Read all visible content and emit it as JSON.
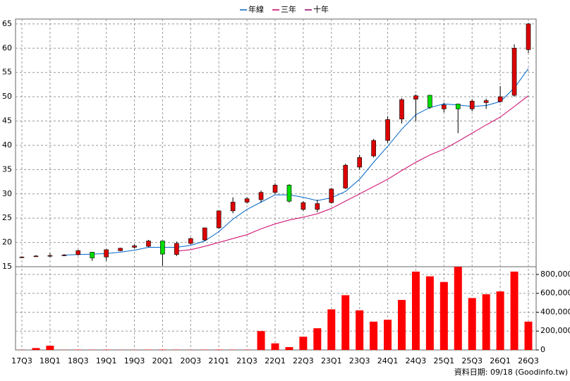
{
  "chart_data": {
    "type": "candlestick",
    "categories": [
      "17Q3",
      null,
      "18Q1",
      null,
      "18Q3",
      null,
      "19Q1",
      null,
      "19Q3",
      null,
      "20Q1",
      null,
      "20Q3",
      null,
      "21Q1",
      null,
      "21Q3",
      null,
      "22Q1",
      null,
      "22Q3",
      null,
      "23Q1",
      null,
      "23Q3",
      null,
      "24Q1",
      null,
      "24Q3",
      null,
      "25Q1",
      null,
      "25Q3",
      null,
      "26Q1",
      null,
      "26Q3"
    ],
    "open": [
      17,
      17.2,
      17.3,
      17.4,
      17.5,
      18,
      17,
      18.3,
      19,
      19.2,
      20.3,
      17.5,
      19.8,
      20.5,
      23,
      26.5,
      28.3,
      28.8,
      30.3,
      31.8,
      26.8,
      26.8,
      28.2,
      31.2,
      35.5,
      37.8,
      41,
      45.4,
      49.5,
      50.3,
      47.5,
      48.5,
      47.5,
      48.8,
      49,
      50.3,
      59.7
    ],
    "high": [
      17.1,
      17.4,
      17.8,
      17.6,
      18.5,
      18,
      18.5,
      18.9,
      19.6,
      20.5,
      20.3,
      20.2,
      21,
      23,
      26.5,
      29.3,
      29.3,
      30.7,
      32.2,
      32,
      28.5,
      28.8,
      31.2,
      36.2,
      38,
      41.3,
      46,
      49.7,
      50.5,
      50.4,
      48.8,
      48.6,
      49.5,
      49.6,
      52.2,
      60.8,
      65.2
    ],
    "low": [
      16.9,
      17,
      17,
      17.2,
      17.3,
      16.2,
      16.2,
      18.2,
      18.8,
      19,
      15.2,
      17.2,
      19.6,
      20.3,
      22.8,
      26,
      28,
      28.2,
      30,
      28.2,
      26.5,
      26.2,
      28,
      31,
      35,
      37.5,
      40.5,
      44.5,
      45,
      47.5,
      46.8,
      42.5,
      47,
      47.5,
      48.8,
      50,
      59
    ],
    "close": [
      17,
      17.2,
      17.3,
      17.4,
      18.3,
      16.8,
      18.5,
      18.8,
      19.3,
      20.3,
      17.6,
      19.8,
      20.8,
      23,
      26.5,
      28.3,
      29,
      30.3,
      31.8,
      28.5,
      28.2,
      28,
      31,
      35.9,
      37.5,
      41,
      45.3,
      49.4,
      50.2,
      47.8,
      48.3,
      47.5,
      49.1,
      49.2,
      50,
      60,
      65
    ],
    "up_color": "#dd0000",
    "down_color": "#00dd00",
    "series": [
      {
        "name": "年線",
        "color": "#0066cc",
        "values": [
          null,
          null,
          null,
          17.4,
          17.5,
          17.6,
          17.7,
          18,
          18.4,
          19,
          19,
          19,
          19.4,
          20.3,
          22.2,
          24.8,
          26.8,
          28.3,
          29.8,
          29.8,
          29.3,
          28.6,
          29.2,
          30.5,
          33,
          36.5,
          39.8,
          43.3,
          46.3,
          47.8,
          48.5,
          48.3,
          48,
          48.2,
          49,
          51.8,
          55.8
        ]
      },
      {
        "name": "三年",
        "color": "#cc0066",
        "values": [
          null,
          null,
          null,
          null,
          null,
          null,
          null,
          null,
          null,
          null,
          null,
          18.2,
          18.5,
          19.2,
          20,
          20.8,
          21.6,
          22.8,
          23.8,
          24.6,
          25.2,
          25.9,
          27,
          28.5,
          30,
          31.5,
          33,
          34.8,
          36.5,
          38,
          39.2,
          40.8,
          42.5,
          44.2,
          45.8,
          48,
          50.2
        ]
      },
      {
        "name": "十年",
        "color": "#990066",
        "values": [
          null,
          null,
          null,
          null,
          null,
          null,
          null,
          null,
          null,
          null,
          null,
          null,
          null,
          null,
          null,
          null,
          null,
          null,
          null,
          null,
          null,
          null,
          null,
          null,
          null,
          null,
          null,
          null,
          null,
          null,
          null,
          null,
          null,
          null,
          null,
          null,
          null
        ]
      }
    ],
    "ylim": [
      15,
      66
    ],
    "yticks": [
      15,
      20,
      25,
      30,
      35,
      40,
      45,
      50,
      55,
      60,
      65
    ],
    "grid": true,
    "volume": {
      "color": "#ff0000",
      "values": [
        2000,
        20000,
        45000,
        2000,
        3000,
        2000,
        3000,
        2000,
        2000,
        3000,
        4000,
        3000,
        2000,
        3000,
        4000,
        3000,
        3000,
        200000,
        70000,
        30000,
        140000,
        230000,
        430000,
        580000,
        420000,
        300000,
        320000,
        530000,
        830000,
        780000,
        720000,
        880000,
        550000,
        590000,
        620000,
        830000,
        300000
      ],
      "ylim": [
        0,
        882000
      ],
      "yticks": [
        0,
        {
          "value": 200000,
          "label": "200,000"
        },
        {
          "value": 400000,
          "label": "400,000"
        },
        {
          "value": 600000,
          "label": "600,000"
        },
        {
          "value": 800000,
          "label": "800,000"
        }
      ]
    },
    "footer": "資料日期: 09/18 (Goodinfo.tw)"
  }
}
